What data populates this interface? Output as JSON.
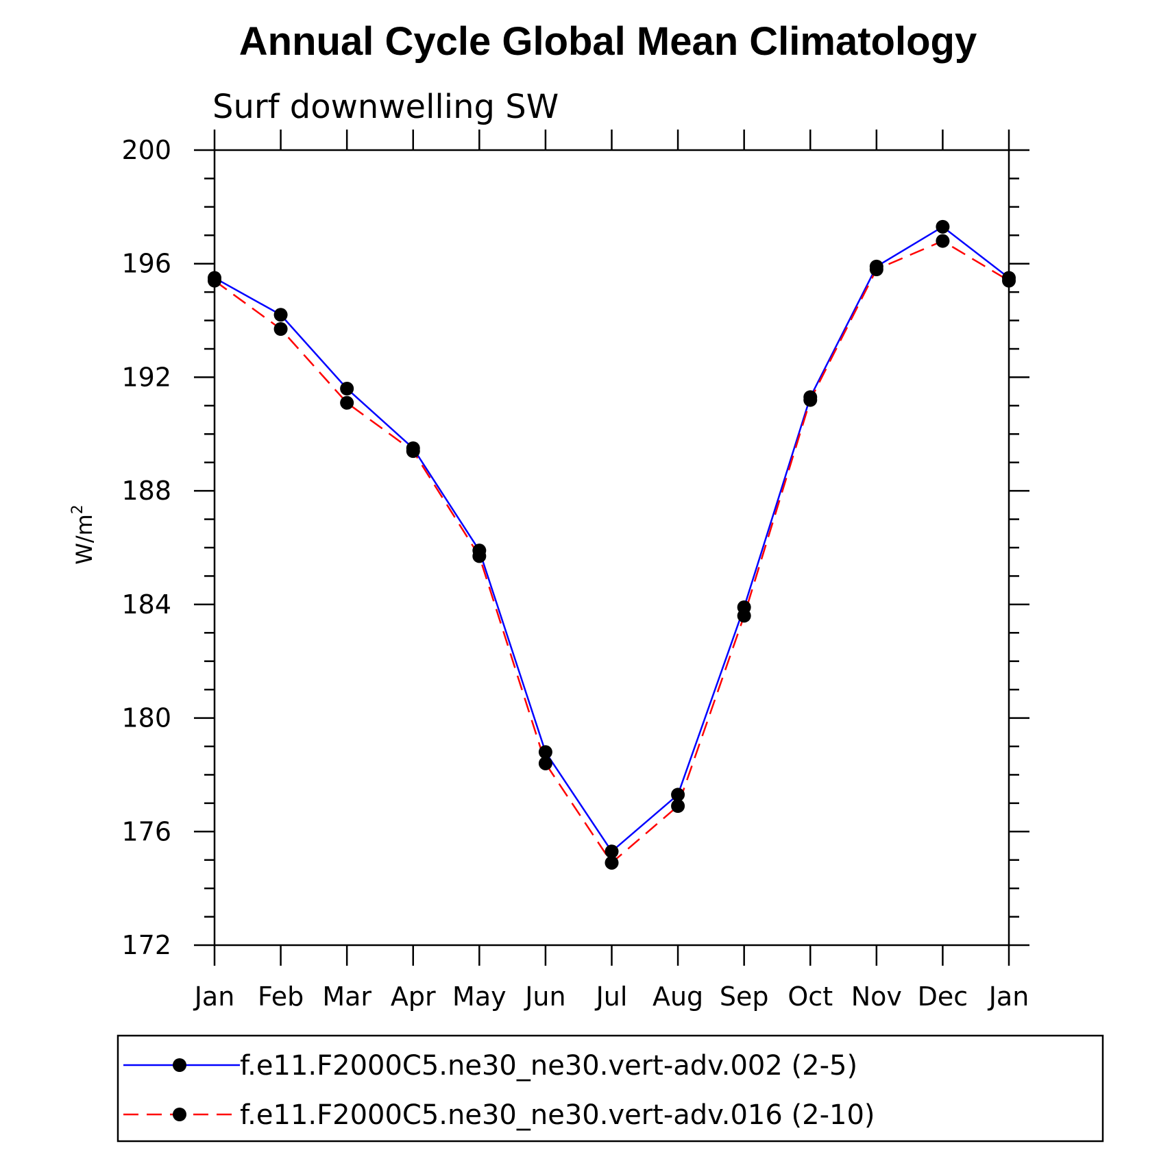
{
  "chart_data": {
    "type": "line",
    "title": "Annual Cycle Global Mean Climatology",
    "subtitle": "Surf downwelling SW",
    "ylabel": "W/m",
    "ylabel_superscript": "2",
    "xlabel": "",
    "ylim": [
      172,
      200
    ],
    "yticks": [
      172,
      176,
      180,
      184,
      188,
      192,
      196,
      200
    ],
    "categories": [
      "Jan",
      "Feb",
      "Mar",
      "Apr",
      "May",
      "Jun",
      "Jul",
      "Aug",
      "Sep",
      "Oct",
      "Nov",
      "Dec",
      "Jan"
    ],
    "series": [
      {
        "name": "f.e11.F2000C5.ne30_ne30.vert-adv.002 (2-5)",
        "color": "#0000ff",
        "style": "solid",
        "marker": "circle",
        "values": [
          195.5,
          194.2,
          191.6,
          189.5,
          185.9,
          178.8,
          175.3,
          177.3,
          183.9,
          191.3,
          195.9,
          197.3,
          195.5
        ]
      },
      {
        "name": "f.e11.F2000C5.ne30_ne30.vert-adv.016 (2-10)",
        "color": "#ff0000",
        "style": "dashed",
        "marker": "circle",
        "values": [
          195.4,
          193.7,
          191.1,
          189.4,
          185.7,
          178.4,
          174.9,
          176.9,
          183.6,
          191.2,
          195.8,
          196.8,
          195.4
        ]
      }
    ],
    "legend_position": "bottom",
    "grid": false
  }
}
